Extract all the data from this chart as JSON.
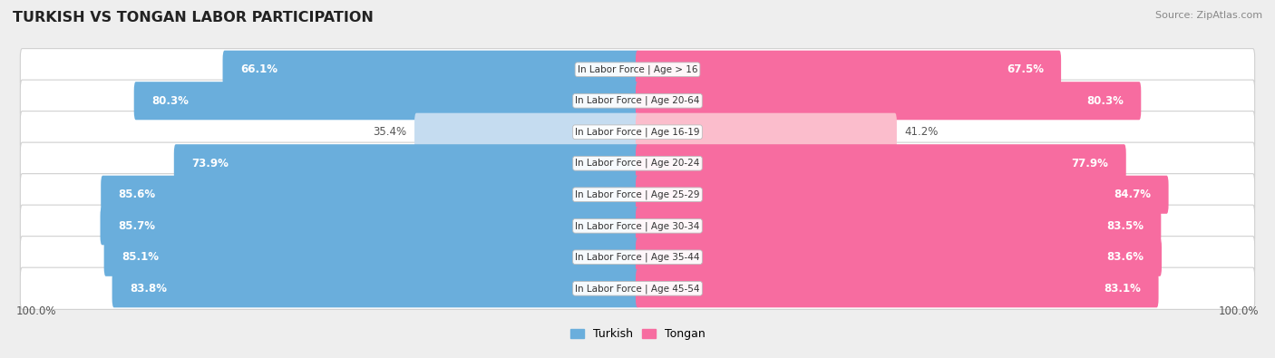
{
  "title": "TURKISH VS TONGAN LABOR PARTICIPATION",
  "source": "Source: ZipAtlas.com",
  "categories": [
    "In Labor Force | Age > 16",
    "In Labor Force | Age 20-64",
    "In Labor Force | Age 16-19",
    "In Labor Force | Age 20-24",
    "In Labor Force | Age 25-29",
    "In Labor Force | Age 30-34",
    "In Labor Force | Age 35-44",
    "In Labor Force | Age 45-54"
  ],
  "turkish_values": [
    66.1,
    80.3,
    35.4,
    73.9,
    85.6,
    85.7,
    85.1,
    83.8
  ],
  "tongan_values": [
    67.5,
    80.3,
    41.2,
    77.9,
    84.7,
    83.5,
    83.6,
    83.1
  ],
  "turkish_color_high": "#6aaedc",
  "turkish_color_low": "#c5dcf0",
  "tongan_color_high": "#f76ca0",
  "tongan_color_low": "#fbbdcc",
  "bg_color": "#eeeeee",
  "row_bg": "#ffffff",
  "row_shadow": "#dddddd",
  "bar_height": 0.62,
  "x_max": 100.0,
  "threshold": 55.0,
  "label_inside_threshold": 45.0,
  "x_axis_label": "100.0%",
  "legend_turkish": "Turkish",
  "legend_tongan": "Tongan"
}
